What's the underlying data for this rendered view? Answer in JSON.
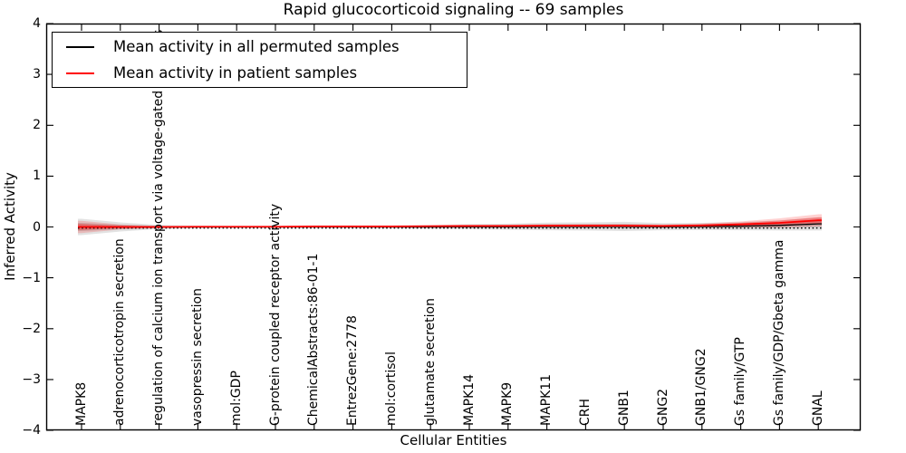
{
  "chart_data": {
    "type": "line",
    "title": "Rapid glucocorticoid signaling -- 69 samples",
    "xlabel": "Cellular Entities",
    "ylabel": "Inferred Activity",
    "ylim": [
      -4,
      4
    ],
    "ytick_labels": [
      "4",
      "3",
      "2",
      "1",
      "0",
      "−1",
      "−2",
      "−3",
      "−4"
    ],
    "ytick_values": [
      4,
      3,
      2,
      1,
      0,
      -1,
      -2,
      -3,
      -4
    ],
    "legend_position": "upper left",
    "grid": false,
    "zero_reference_line": {
      "style": "dotted",
      "value": 0,
      "color": "#000000"
    },
    "categories": [
      "MAPK8",
      "adrenocorticotropin secretion",
      "regulation of calcium ion transport via voltage-gated channels",
      "vasopressin secretion",
      "mol:GDP",
      "G-protein coupled receptor activity",
      "ChemicalAbstracts:86-01-1",
      "EntrezGene:2778",
      "mol:cortisol",
      "glutamate secretion",
      "MAPK14",
      "MAPK9",
      "MAPK11",
      "CRH",
      "GNB1",
      "GNG2",
      "GNB1/GNG2",
      "Gs family/GTP",
      "Gs family/GDP/Gbeta gamma",
      "GNAL"
    ],
    "series": [
      {
        "name": "Mean activity in all permuted samples",
        "color": "#000000",
        "line_width": 1.3,
        "values": [
          0,
          0,
          0,
          0,
          0,
          0,
          0,
          0,
          0,
          0,
          0.005,
          0.005,
          0.01,
          0.01,
          0.01,
          0.005,
          0.01,
          0.015,
          0.03,
          0.06
        ],
        "band_halfwidth": [
          0.16,
          0.09,
          0.04,
          0.025,
          0.02,
          0.02,
          0.02,
          0.02,
          0.025,
          0.035,
          0.05,
          0.06,
          0.075,
          0.08,
          0.09,
          0.07,
          0.07,
          0.08,
          0.1,
          0.13
        ],
        "band_color_outer": "rgba(125,125,125,0.22)",
        "band_color_inner": "rgba(125,125,125,0.30)"
      },
      {
        "name": "Mean activity in patient samples",
        "color": "#ff0000",
        "line_width": 1.8,
        "values": [
          0,
          0,
          0,
          0.005,
          0.005,
          0.005,
          0.01,
          0.01,
          0.01,
          0.015,
          0.02,
          0.02,
          0.025,
          0.025,
          0.025,
          0.02,
          0.03,
          0.05,
          0.08,
          0.13
        ],
        "band_halfwidth": [
          0.12,
          0.05,
          0.02,
          0.015,
          0.012,
          0.012,
          0.012,
          0.012,
          0.012,
          0.015,
          0.02,
          0.025,
          0.03,
          0.035,
          0.035,
          0.03,
          0.04,
          0.06,
          0.09,
          0.12
        ],
        "band_color_outer": "rgba(255,0,0,0.18)",
        "band_color_inner": "rgba(255,0,0,0.30)"
      }
    ]
  }
}
